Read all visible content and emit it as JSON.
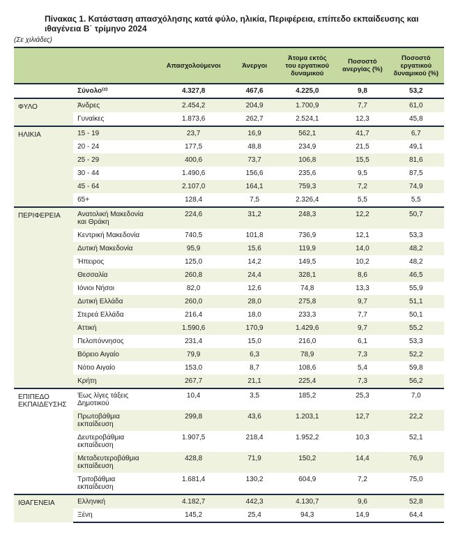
{
  "title": "Πίνακας 1. Κατάσταση απασχόλησης κατά φύλο, ηλικία, Περιφέρεια, επίπεδο εκπαίδευσης και ιθαγένεια Β΄ τρίμηνο 2024",
  "unit_note": "(Σε χιλιάδες)",
  "columns": {
    "c1": "",
    "c2": "",
    "c3": "Απασχολούμενοι",
    "c4": "Άνεργοι",
    "c5": "Άτομα εκτός του εργατικού δυναμικού",
    "c6": "Ποσοστό ανεργίας (%)",
    "c7": "Ποσοστό εργατικού δυναμικού (%)"
  },
  "total": {
    "label": "Σύνολο⁽²⁾",
    "employed": "4.327,8",
    "unemployed": "467,6",
    "outside": "4.225,0",
    "urate": "9,8",
    "lfrate": "53,2"
  },
  "sections": [
    {
      "category": "ΦΥΛΟ",
      "rows": [
        {
          "label": "Άνδρες",
          "employed": "2.454,2",
          "unemployed": "204,9",
          "outside": "1.700,9",
          "urate": "7,7",
          "lfrate": "61,0",
          "shade": true
        },
        {
          "label": "Γυναίκες",
          "employed": "1.873,6",
          "unemployed": "262,7",
          "outside": "2.524,1",
          "urate": "12,3",
          "lfrate": "45,8",
          "shade": false
        }
      ]
    },
    {
      "category": "ΗΛΙΚΙΑ",
      "rows": [
        {
          "label": "15 - 19",
          "employed": "23,7",
          "unemployed": "16,9",
          "outside": "562,1",
          "urate": "41,7",
          "lfrate": "6,7",
          "shade": true
        },
        {
          "label": "20 - 24",
          "employed": "177,5",
          "unemployed": "48,8",
          "outside": "234,9",
          "urate": "21,5",
          "lfrate": "49,1",
          "shade": false
        },
        {
          "label": "25 - 29",
          "employed": "400,6",
          "unemployed": "73,7",
          "outside": "106,8",
          "urate": "15,5",
          "lfrate": "81,6",
          "shade": true
        },
        {
          "label": "30 - 44",
          "employed": "1.490,6",
          "unemployed": "156,6",
          "outside": "235,6",
          "urate": "9,5",
          "lfrate": "87,5",
          "shade": false
        },
        {
          "label": "45 - 64",
          "employed": "2.107,0",
          "unemployed": "164,1",
          "outside": "759,3",
          "urate": "7,2",
          "lfrate": "74,9",
          "shade": true
        },
        {
          "label": "65+",
          "employed": "128,4",
          "unemployed": "7,5",
          "outside": "2.326,4",
          "urate": "5,5",
          "lfrate": "5,5",
          "shade": false
        }
      ]
    },
    {
      "category": "ΠΕΡΙΦΕΡΕΙΑ",
      "rows": [
        {
          "label": "Ανατολική Μακεδονία και Θράκη",
          "employed": "224,6",
          "unemployed": "31,2",
          "outside": "248,3",
          "urate": "12,2",
          "lfrate": "50,7",
          "shade": true
        },
        {
          "label": "Κεντρική Μακεδονία",
          "employed": "740,5",
          "unemployed": "101,8",
          "outside": "736,9",
          "urate": "12,1",
          "lfrate": "53,3",
          "shade": false
        },
        {
          "label": "Δυτική Μακεδονία",
          "employed": "95,9",
          "unemployed": "15,6",
          "outside": "119,9",
          "urate": "14,0",
          "lfrate": "48,2",
          "shade": true
        },
        {
          "label": "Ήπειρος",
          "employed": "125,0",
          "unemployed": "14,2",
          "outside": "149,5",
          "urate": "10,2",
          "lfrate": "48,2",
          "shade": false
        },
        {
          "label": "Θεσσαλία",
          "employed": "260,8",
          "unemployed": "24,4",
          "outside": "328,1",
          "urate": "8,6",
          "lfrate": "46,5",
          "shade": true
        },
        {
          "label": "Ιόνιοι Νήσοι",
          "employed": "82,0",
          "unemployed": "12,6",
          "outside": "74,8",
          "urate": "13,3",
          "lfrate": "55,9",
          "shade": false
        },
        {
          "label": "Δυτική Ελλάδα",
          "employed": "260,0",
          "unemployed": "28,0",
          "outside": "275,8",
          "urate": "9,7",
          "lfrate": "51,1",
          "shade": true
        },
        {
          "label": "Στερεά Ελλάδα",
          "employed": "216,4",
          "unemployed": "18,0",
          "outside": "233,3",
          "urate": "7,7",
          "lfrate": "50,1",
          "shade": false
        },
        {
          "label": "Αττική",
          "employed": "1.590,6",
          "unemployed": "170,9",
          "outside": "1.429,6",
          "urate": "9,7",
          "lfrate": "55,2",
          "shade": true
        },
        {
          "label": "Πελοπόννησος",
          "employed": "231,4",
          "unemployed": "15,0",
          "outside": "216,0",
          "urate": "6,1",
          "lfrate": "53,3",
          "shade": false
        },
        {
          "label": "Βόρειο Αιγαίο",
          "employed": "79,9",
          "unemployed": "6,3",
          "outside": "78,9",
          "urate": "7,3",
          "lfrate": "52,2",
          "shade": true
        },
        {
          "label": "Νότιο Αιγαίο",
          "employed": "153,0",
          "unemployed": "8,7",
          "outside": "108,6",
          "urate": "5,4",
          "lfrate": "59,8",
          "shade": false
        },
        {
          "label": "Κρήτη",
          "employed": "267,7",
          "unemployed": "21,1",
          "outside": "225,4",
          "urate": "7,3",
          "lfrate": "56,2",
          "shade": true
        }
      ]
    },
    {
      "category": "ΕΠΙΠΕΔΟ ΕΚΠΑΙΔΕΥΣΗΣ",
      "rows": [
        {
          "label": "Έως λίγες τάξεις Δημοτικού",
          "employed": "10,4",
          "unemployed": "3,5",
          "outside": "185,2",
          "urate": "25,3",
          "lfrate": "7,0",
          "shade": false
        },
        {
          "label": "Πρωτοβάθμια εκπαίδευση",
          "employed": "299,8",
          "unemployed": "43,6",
          "outside": "1.203,1",
          "urate": "12,7",
          "lfrate": "22,2",
          "shade": true
        },
        {
          "label": "Δευτεροβάθμια εκπαίδευση",
          "employed": "1.907,5",
          "unemployed": "218,4",
          "outside": "1.952,2",
          "urate": "10,3",
          "lfrate": "52,1",
          "shade": false
        },
        {
          "label": "Μεταδευτεροβάθμια εκπαίδευση",
          "employed": "428,8",
          "unemployed": "71,9",
          "outside": "150,2",
          "urate": "14,4",
          "lfrate": "76,9",
          "shade": true
        },
        {
          "label": "Τριτοβάθμια εκπαίδευση",
          "employed": "1.681,4",
          "unemployed": "130,2",
          "outside": "604,9",
          "urate": "7,2",
          "lfrate": "75,0",
          "shade": false
        }
      ]
    },
    {
      "category": "ΙΘΑΓΕΝΕΙΑ",
      "rows": [
        {
          "label": "Ελληνική",
          "employed": "4.182,7",
          "unemployed": "442,3",
          "outside": "4.130,7",
          "urate": "9,6",
          "lfrate": "52,8",
          "shade": true
        },
        {
          "label": "Ξένη",
          "employed": "145,2",
          "unemployed": "25,4",
          "outside": "94,3",
          "urate": "14,9",
          "lfrate": "64,4",
          "shade": false
        }
      ]
    }
  ],
  "colors": {
    "header_bg": "#c5d9a0",
    "shade_bg": "#eef2df",
    "rule": "#1a2b40"
  }
}
